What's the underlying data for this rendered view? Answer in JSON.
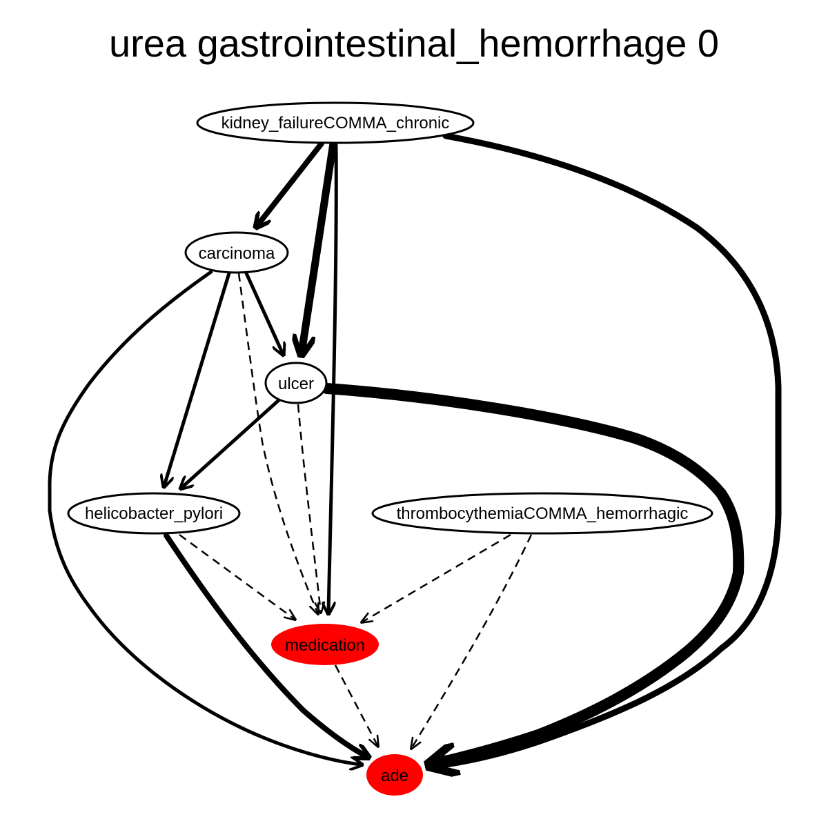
{
  "title": "urea gastrointestinal_hemorrhage 0",
  "colors": {
    "highlight": "#ff0000",
    "default_fill": "#ffffff",
    "stroke": "#000000"
  },
  "nodes": [
    {
      "id": "kidney_failure",
      "label": "kidney_failureCOMMA_chronic",
      "highlighted": false
    },
    {
      "id": "carcinoma",
      "label": "carcinoma",
      "highlighted": false
    },
    {
      "id": "ulcer",
      "label": "ulcer",
      "highlighted": false
    },
    {
      "id": "helicobacter_pylori",
      "label": "helicobacter_pylori",
      "highlighted": false
    },
    {
      "id": "thrombocythemia",
      "label": "thrombocythemiaCOMMA_hemorrhagic",
      "highlighted": false
    },
    {
      "id": "medication",
      "label": "medication",
      "highlighted": true
    },
    {
      "id": "ade",
      "label": "ade",
      "highlighted": true
    }
  ],
  "edges": [
    {
      "from": "kidney_failure",
      "to": "carcinoma",
      "style": "solid",
      "weight": "heavy"
    },
    {
      "from": "kidney_failure",
      "to": "ulcer",
      "style": "solid",
      "weight": "heavier"
    },
    {
      "from": "kidney_failure",
      "to": "medication",
      "style": "solid",
      "weight": "medium"
    },
    {
      "from": "kidney_failure",
      "to": "ade",
      "style": "solid",
      "weight": "heavy"
    },
    {
      "from": "carcinoma",
      "to": "ulcer",
      "style": "solid",
      "weight": "medium"
    },
    {
      "from": "carcinoma",
      "to": "helicobacter_pylori",
      "style": "solid",
      "weight": "medium"
    },
    {
      "from": "carcinoma",
      "to": "medication",
      "style": "dashed",
      "weight": "light"
    },
    {
      "from": "carcinoma",
      "to": "ade",
      "style": "solid",
      "weight": "medium"
    },
    {
      "from": "ulcer",
      "to": "helicobacter_pylori",
      "style": "solid",
      "weight": "medium"
    },
    {
      "from": "ulcer",
      "to": "medication",
      "style": "dashed",
      "weight": "light"
    },
    {
      "from": "ulcer",
      "to": "ade",
      "style": "solid",
      "weight": "heaviest"
    },
    {
      "from": "helicobacter_pylori",
      "to": "medication",
      "style": "dashed",
      "weight": "light"
    },
    {
      "from": "helicobacter_pylori",
      "to": "ade",
      "style": "solid",
      "weight": "heavy"
    },
    {
      "from": "thrombocythemia",
      "to": "medication",
      "style": "dashed",
      "weight": "light"
    },
    {
      "from": "thrombocythemia",
      "to": "ade",
      "style": "dashed",
      "weight": "light"
    },
    {
      "from": "medication",
      "to": "ade",
      "style": "dashed",
      "weight": "light"
    }
  ]
}
